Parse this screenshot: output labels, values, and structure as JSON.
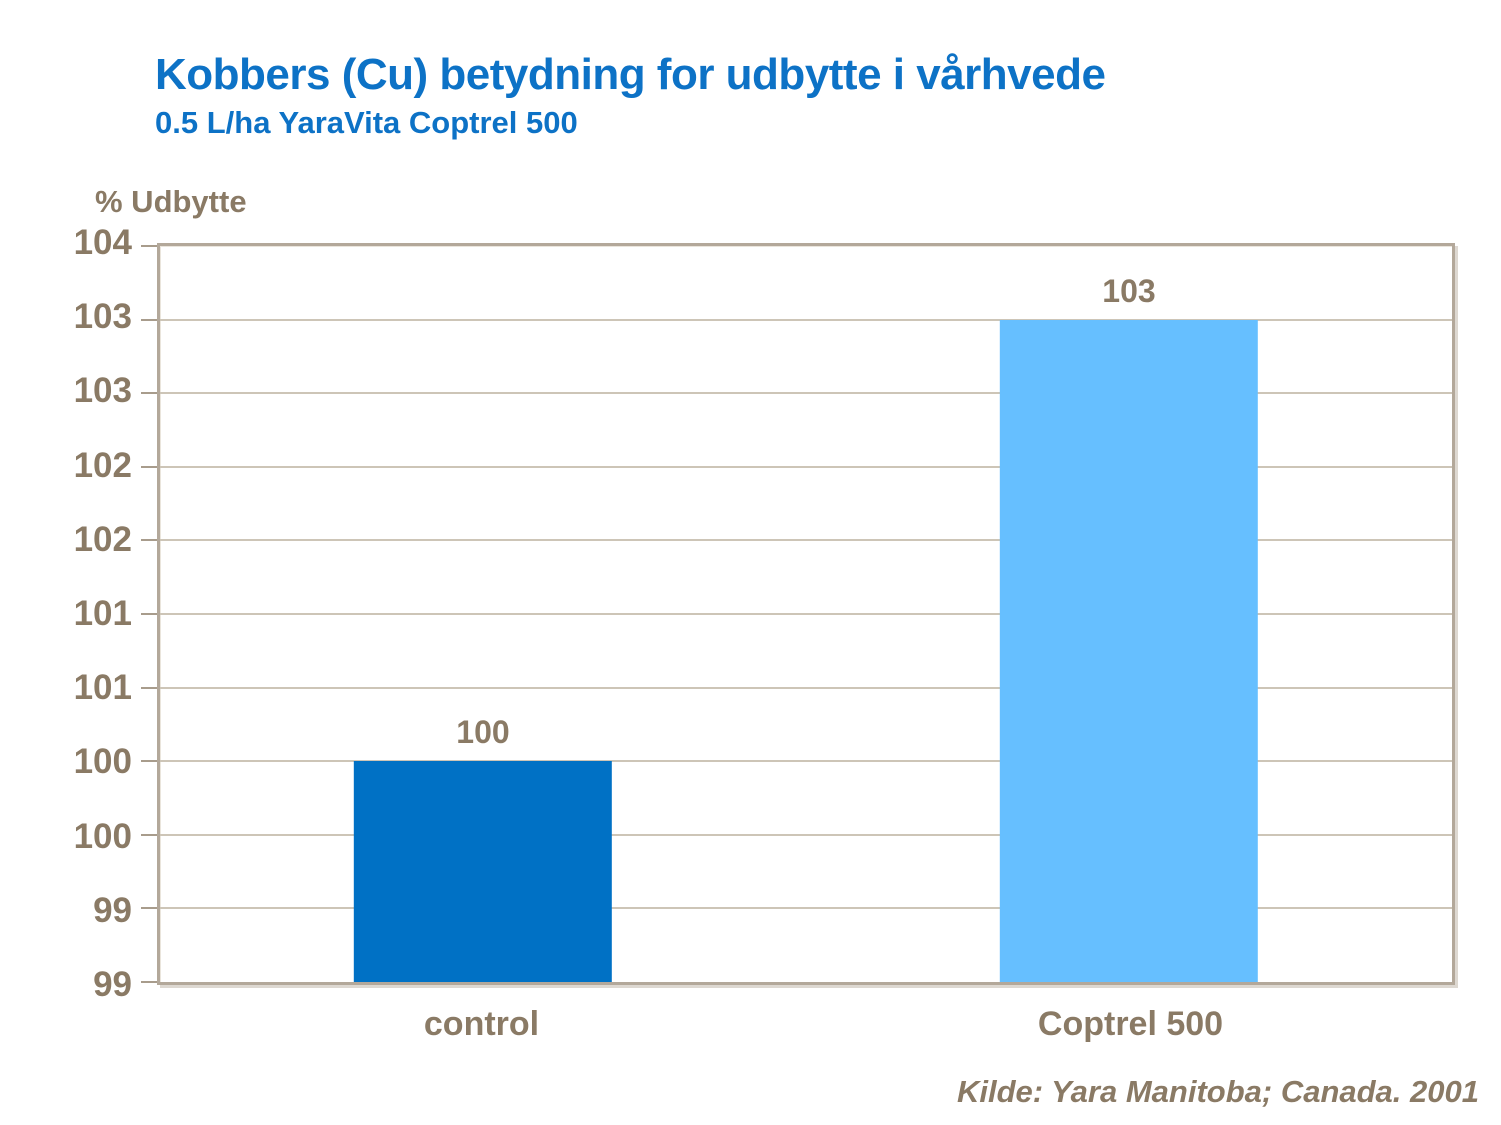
{
  "header": {
    "title": "Kobbers (Cu) betydning for udbytte i vårhvede",
    "subtitle": "0.5 L/ha YaraVita Coptrel 500"
  },
  "footer": {
    "source": "Kilde: Yara Manitoba; Canada. 2001"
  },
  "colors": {
    "title_blue": "#0d72c6",
    "text_brown": "#8a7a65",
    "frame_tan": "#b3a89a",
    "gridline": "#cdc5b7",
    "bar_control": "#0071c5",
    "bar_coptrel": "#66bfff",
    "background": "#ffffff"
  },
  "chart_data": {
    "type": "bar",
    "title": "Kobbers (Cu) betydning for udbytte i vårhvede",
    "subtitle": "0.5 L/ha YaraVita Coptrel 500",
    "y_axis_title": "% Udbytte",
    "xlabel": "",
    "ylabel": "% Udbytte",
    "categories": [
      "control",
      "Coptrel 500"
    ],
    "values": [
      100,
      103
    ],
    "bar_labels": [
      "100",
      "103"
    ],
    "bar_colors": [
      "#0071c5",
      "#66bfff"
    ],
    "ylim": [
      98.5,
      103.5
    ],
    "tick_step": 0.5,
    "tick_labels_top_to_bottom": [
      "104",
      "103",
      "103",
      "102",
      "102",
      "101",
      "101",
      "100",
      "100",
      "99",
      "99"
    ],
    "grid": true,
    "legend": false,
    "source": "Kilde: Yara Manitoba; Canada. 2001"
  }
}
